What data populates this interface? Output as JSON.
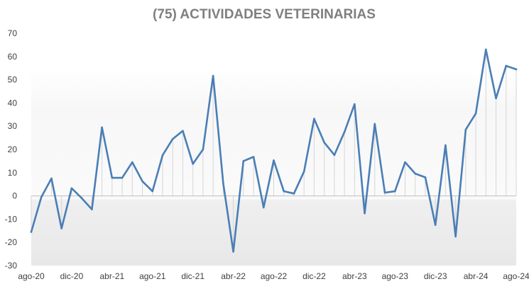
{
  "chart_data": {
    "type": "area",
    "title": "(75) ACTIVIDADES VETERINARIAS",
    "xlabel": "",
    "ylabel": "",
    "ylim": [
      -30,
      70
    ],
    "yticks": [
      -30,
      -20,
      -10,
      0,
      10,
      20,
      30,
      40,
      50,
      60,
      70
    ],
    "grid": false,
    "legend": "none",
    "line_color": "#4a7eb5",
    "x": [
      "ago-20",
      "sep-20",
      "oct-20",
      "nov-20",
      "dic-20",
      "ene-21",
      "feb-21",
      "mar-21",
      "abr-21",
      "may-21",
      "jun-21",
      "jul-21",
      "ago-21",
      "sep-21",
      "oct-21",
      "nov-21",
      "dic-21",
      "ene-22",
      "feb-22",
      "mar-22",
      "abr-22",
      "may-22",
      "jun-22",
      "jul-22",
      "ago-22",
      "sep-22",
      "oct-22",
      "nov-22",
      "dic-22",
      "ene-23",
      "feb-23",
      "mar-23",
      "abr-23",
      "may-23",
      "jun-23",
      "jul-23",
      "ago-23",
      "sep-23",
      "oct-23",
      "nov-23",
      "dic-23",
      "ene-24",
      "feb-24",
      "mar-24",
      "abr-24",
      "may-24",
      "jun-24",
      "jul-24",
      "ago-24"
    ],
    "xtick_labels": [
      "ago-20",
      "dic-20",
      "abr-21",
      "ago-21",
      "dic-21",
      "abr-22",
      "ago-22",
      "dic-22",
      "abr-23",
      "ago-23",
      "dic-23",
      "abr-24",
      "ago-24"
    ],
    "series": [
      {
        "values": [
          -15.5,
          -0.5,
          7.5,
          -14,
          3.3,
          -1,
          -5.8,
          29.5,
          7.8,
          7.8,
          14.5,
          6.3,
          2,
          17.5,
          24.5,
          28,
          13.8,
          20,
          51.7,
          5.5,
          -24,
          15,
          16.8,
          -5,
          15.3,
          2,
          1,
          10.5,
          33.2,
          23,
          17.6,
          27.5,
          39.5,
          -7.5,
          31,
          1.4,
          2,
          14.5,
          9.6,
          8,
          -12.5,
          21.8,
          -17.5,
          28.5,
          35.5,
          63,
          42,
          56,
          54.5
        ]
      }
    ]
  }
}
